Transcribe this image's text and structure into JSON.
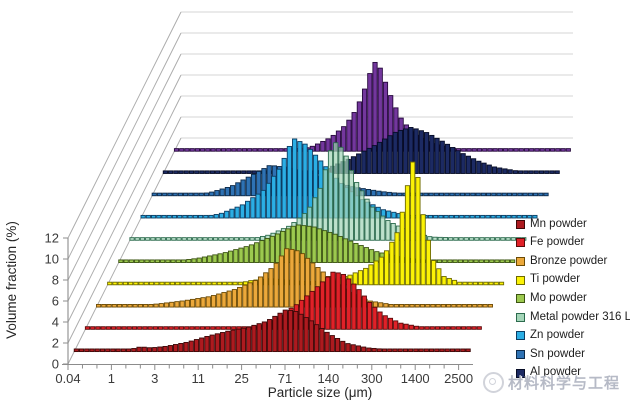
{
  "chart_data": {
    "type": "bar",
    "subtype": "3d-waterfall-ridgeline-histogram",
    "title": "",
    "xlabel": "Particle size (μm)",
    "ylabel": "Volume fraction (%)",
    "x_tick_labels": [
      "0.04",
      "1",
      "3",
      "11",
      "25",
      "71",
      "140",
      "300",
      "1400",
      "2500"
    ],
    "x_unit_note": "points x = category index into x_tick_labels (0 = 0.04 μm ... 9 = 2500 μm)",
    "y_ticks": [
      0,
      2,
      4,
      6,
      8,
      10,
      12
    ],
    "ylim": [
      0,
      12
    ],
    "grid": true,
    "legend_position": "right",
    "series": [
      {
        "name": "Mn powder",
        "color": "#AD1A1F",
        "stroke": "#3f0808",
        "in_legend": true,
        "points": [
          [
            0,
            0
          ],
          [
            1.1,
            0.05
          ],
          [
            1.5,
            0.45
          ],
          [
            1.75,
            0.35
          ],
          [
            2.1,
            0.5
          ],
          [
            2.6,
            0.9
          ],
          [
            3.1,
            1.5
          ],
          [
            3.6,
            2.0
          ],
          [
            4.0,
            2.3
          ],
          [
            4.45,
            2.9
          ],
          [
            4.9,
            4.0
          ],
          [
            5.15,
            3.8
          ],
          [
            5.5,
            2.9
          ],
          [
            5.9,
            1.7
          ],
          [
            6.3,
            0.8
          ],
          [
            6.8,
            0.35
          ],
          [
            7.4,
            0.15
          ],
          [
            9.15,
            0.05
          ]
        ]
      },
      {
        "name": "Fe powder",
        "color": "#E02128",
        "stroke": "#5a0a0a",
        "in_legend": true,
        "points": [
          [
            0,
            0
          ],
          [
            3.7,
            0.05
          ],
          [
            4.1,
            0.5
          ],
          [
            4.5,
            1.3
          ],
          [
            4.9,
            2.4
          ],
          [
            5.3,
            3.8
          ],
          [
            5.75,
            5.5
          ],
          [
            6.0,
            5.2
          ],
          [
            6.3,
            4.0
          ],
          [
            6.6,
            2.5
          ],
          [
            6.9,
            1.4
          ],
          [
            7.3,
            0.6
          ],
          [
            7.8,
            0.2
          ],
          [
            9.15,
            0.03
          ]
        ]
      },
      {
        "name": "Bronze powder",
        "color": "#EBA83B",
        "stroke": "#6b4a05",
        "in_legend": true,
        "points": [
          [
            0,
            0
          ],
          [
            0.8,
            0.1
          ],
          [
            1.4,
            0.3
          ],
          [
            2.0,
            0.6
          ],
          [
            2.6,
            1.0
          ],
          [
            3.2,
            1.7
          ],
          [
            3.7,
            2.6
          ],
          [
            4.1,
            3.9
          ],
          [
            4.4,
            5.6
          ],
          [
            4.7,
            5.3
          ],
          [
            5.0,
            4.2
          ],
          [
            5.4,
            2.8
          ],
          [
            5.8,
            1.5
          ],
          [
            6.3,
            0.6
          ],
          [
            6.9,
            0.2
          ],
          [
            9.15,
            0.05
          ]
        ]
      },
      {
        "name": "Ti powder",
        "color": "#FBF206",
        "stroke": "#6e6a00",
        "in_legend": true,
        "points": [
          [
            0,
            0
          ],
          [
            2.9,
            0.05
          ],
          [
            3.3,
            0.4
          ],
          [
            3.7,
            0.6
          ],
          [
            4.1,
            0.45
          ],
          [
            4.6,
            0.3
          ],
          [
            5.1,
            0.4
          ],
          [
            5.6,
            0.9
          ],
          [
            6.0,
            1.6
          ],
          [
            6.4,
            2.8
          ],
          [
            6.7,
            4.8
          ],
          [
            6.9,
            8.0
          ],
          [
            7.05,
            12.0
          ],
          [
            7.2,
            10.2
          ],
          [
            7.35,
            5.8
          ],
          [
            7.55,
            2.4
          ],
          [
            7.8,
            0.8
          ],
          [
            8.2,
            0.2
          ],
          [
            9.15,
            0.05
          ]
        ]
      },
      {
        "name": "Mo powder",
        "color": "#9CC94F",
        "stroke": "#3c5412",
        "in_legend": true,
        "points": [
          [
            0,
            0
          ],
          [
            1.2,
            0.1
          ],
          [
            1.8,
            0.4
          ],
          [
            2.4,
            0.9
          ],
          [
            3.0,
            1.6
          ],
          [
            3.6,
            2.6
          ],
          [
            4.1,
            3.6
          ],
          [
            4.5,
            3.4
          ],
          [
            5.0,
            2.7
          ],
          [
            5.5,
            1.8
          ],
          [
            6.0,
            1.0
          ],
          [
            6.6,
            0.45
          ],
          [
            7.2,
            0.15
          ],
          [
            9.15,
            0.05
          ]
        ]
      },
      {
        "name": "Metal powder 316 L",
        "color": "#A4D5B8",
        "stroke": "#2c6b4e",
        "in_legend": true,
        "fill_opacity": 0.72,
        "points": [
          [
            0,
            0
          ],
          [
            2.7,
            0.05
          ],
          [
            3.2,
            0.5
          ],
          [
            3.7,
            1.4
          ],
          [
            4.1,
            2.8
          ],
          [
            4.4,
            5.0
          ],
          [
            4.7,
            9.5
          ],
          [
            4.95,
            8.6
          ],
          [
            5.2,
            5.8
          ],
          [
            5.6,
            3.2
          ],
          [
            6.0,
            1.8
          ],
          [
            6.5,
            0.8
          ],
          [
            7.0,
            0.3
          ],
          [
            9.15,
            0.05
          ]
        ]
      },
      {
        "name": "Zn powder",
        "color": "#2BAEE4",
        "stroke": "#0c3d63",
        "in_legend": true,
        "points": [
          [
            0,
            0
          ],
          [
            1.3,
            0.05
          ],
          [
            1.8,
            0.4
          ],
          [
            2.3,
            1.2
          ],
          [
            2.8,
            2.6
          ],
          [
            3.2,
            4.8
          ],
          [
            3.5,
            7.6
          ],
          [
            3.8,
            7.0
          ],
          [
            4.2,
            5.2
          ],
          [
            4.6,
            3.4
          ],
          [
            5.1,
            1.8
          ],
          [
            5.6,
            0.8
          ],
          [
            6.1,
            0.3
          ],
          [
            6.6,
            0.1
          ],
          [
            9.15,
            0.03
          ]
        ]
      },
      {
        "name": "Sn powder",
        "color": "#2E72B4",
        "stroke": "#0c2948",
        "in_legend": true,
        "points": [
          [
            0,
            0
          ],
          [
            0.8,
            0.05
          ],
          [
            1.3,
            0.3
          ],
          [
            1.8,
            0.9
          ],
          [
            2.3,
            2.0
          ],
          [
            2.7,
            2.9
          ],
          [
            3.1,
            2.7
          ],
          [
            3.6,
            2.1
          ],
          [
            4.1,
            1.4
          ],
          [
            4.7,
            0.8
          ],
          [
            5.3,
            0.4
          ],
          [
            5.9,
            0.15
          ],
          [
            9.15,
            0.03
          ]
        ]
      },
      {
        "name": "Al powder",
        "color": "#1C2A63",
        "stroke": "#060c26",
        "in_legend": true,
        "points": [
          [
            0,
            0
          ],
          [
            3.3,
            0.05
          ],
          [
            3.8,
            0.5
          ],
          [
            4.3,
            1.4
          ],
          [
            4.9,
            2.7
          ],
          [
            5.4,
            4.0
          ],
          [
            5.75,
            4.4
          ],
          [
            6.1,
            3.9
          ],
          [
            6.5,
            3.0
          ],
          [
            6.9,
            2.0
          ],
          [
            7.3,
            1.2
          ],
          [
            7.7,
            0.6
          ],
          [
            8.2,
            0.25
          ],
          [
            9.15,
            0.1
          ]
        ]
      },
      {
        "name": "",
        "color": "#73379D",
        "stroke": "#26093d",
        "in_legend": false,
        "note": "back-most ridge, no entry visible in legend",
        "points": [
          [
            0,
            0
          ],
          [
            2.8,
            0.05
          ],
          [
            3.2,
            0.5
          ],
          [
            3.6,
            1.3
          ],
          [
            3.95,
            2.5
          ],
          [
            4.2,
            4.0
          ],
          [
            4.45,
            6.5
          ],
          [
            4.6,
            8.6
          ],
          [
            4.75,
            8.0
          ],
          [
            4.95,
            5.8
          ],
          [
            5.2,
            3.4
          ],
          [
            5.5,
            1.8
          ],
          [
            5.9,
            0.8
          ],
          [
            6.4,
            0.3
          ],
          [
            7.0,
            0.12
          ],
          [
            9.15,
            0.05
          ]
        ]
      }
    ]
  },
  "colors": {
    "background": "#ffffff",
    "wall_diagonal_line": "#a8a8a8",
    "wall_horizontal_line": "#d4d4d4",
    "axis_line": "#8c8c8c",
    "tick_text": "#3a3a3a",
    "axis_title_text": "#262626"
  },
  "watermark": {
    "text": "材料科学与工程"
  }
}
